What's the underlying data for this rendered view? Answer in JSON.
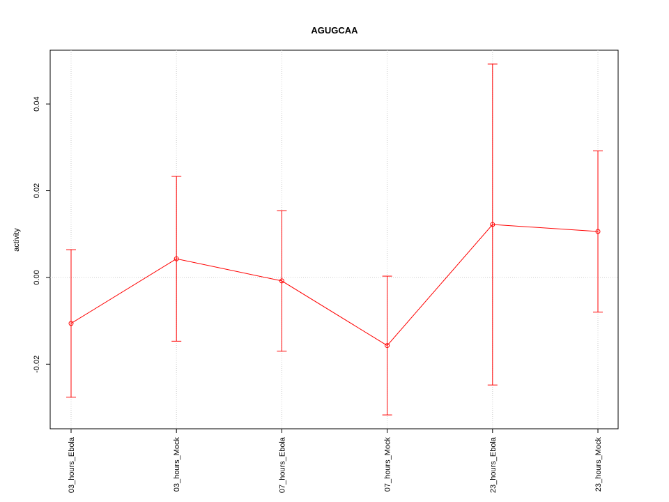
{
  "chart_data": {
    "type": "line",
    "title": "AGUGCAA",
    "y_label": "activity",
    "categories": [
      "03_hours_Ebola",
      "03_hours_Mock",
      "07_hours_Ebola",
      "07_hours_Mock",
      "23_hours_Ebola",
      "23_hours_Mock"
    ],
    "series": [
      {
        "name": "activity",
        "color": "#ff0000",
        "values": [
          -0.0106,
          0.0043,
          -0.0008,
          -0.0157,
          0.0122,
          0.0106
        ],
        "errors": [
          0.017,
          0.019,
          0.0162,
          0.016,
          0.037,
          0.0186
        ]
      }
    ],
    "ylim": [
      -0.0349,
      0.0524
    ],
    "yticks": [
      {
        "value": -0.02,
        "label": "-0.02"
      },
      {
        "value": 0,
        "label": "0.00"
      },
      {
        "value": 0.02,
        "label": "0.02"
      },
      {
        "value": 0.04,
        "label": "0.04"
      }
    ],
    "reference_line": 0,
    "grid": true
  }
}
